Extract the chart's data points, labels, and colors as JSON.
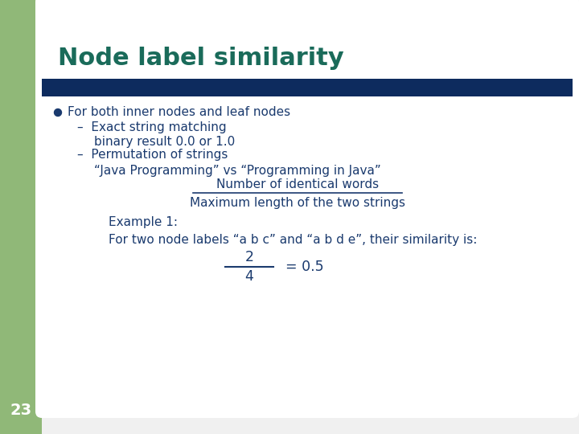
{
  "title": "Node label similarity",
  "title_color": "#1a6b5a",
  "title_fontsize": 22,
  "bg_color": "#f0f0f0",
  "slide_bg": "#ffffff",
  "left_bar_color": "#90b878",
  "header_bar_color": "#0d2b5e",
  "text_color": "#0d2b5e",
  "body_text_color": "#1a3a6e",
  "slide_number": "23",
  "slide_number_color": "#ffffff",
  "content": {
    "bullet1": "For both inner nodes and leaf nodes",
    "sub1": "Exact string matching",
    "sub1b": "binary result 0.0 or 1.0",
    "sub2": "Permutation of strings",
    "quote": "“Java Programming” vs “Programming in Java”",
    "fraction_num": "Number of identical words",
    "fraction_den": "Maximum length of the two strings",
    "example_label": "Example 1:",
    "example_text": "For two node labels “a b c” and “a b d e”, their similarity is:",
    "numerator": "2",
    "denominator": "4",
    "equals": "= 0.5"
  }
}
